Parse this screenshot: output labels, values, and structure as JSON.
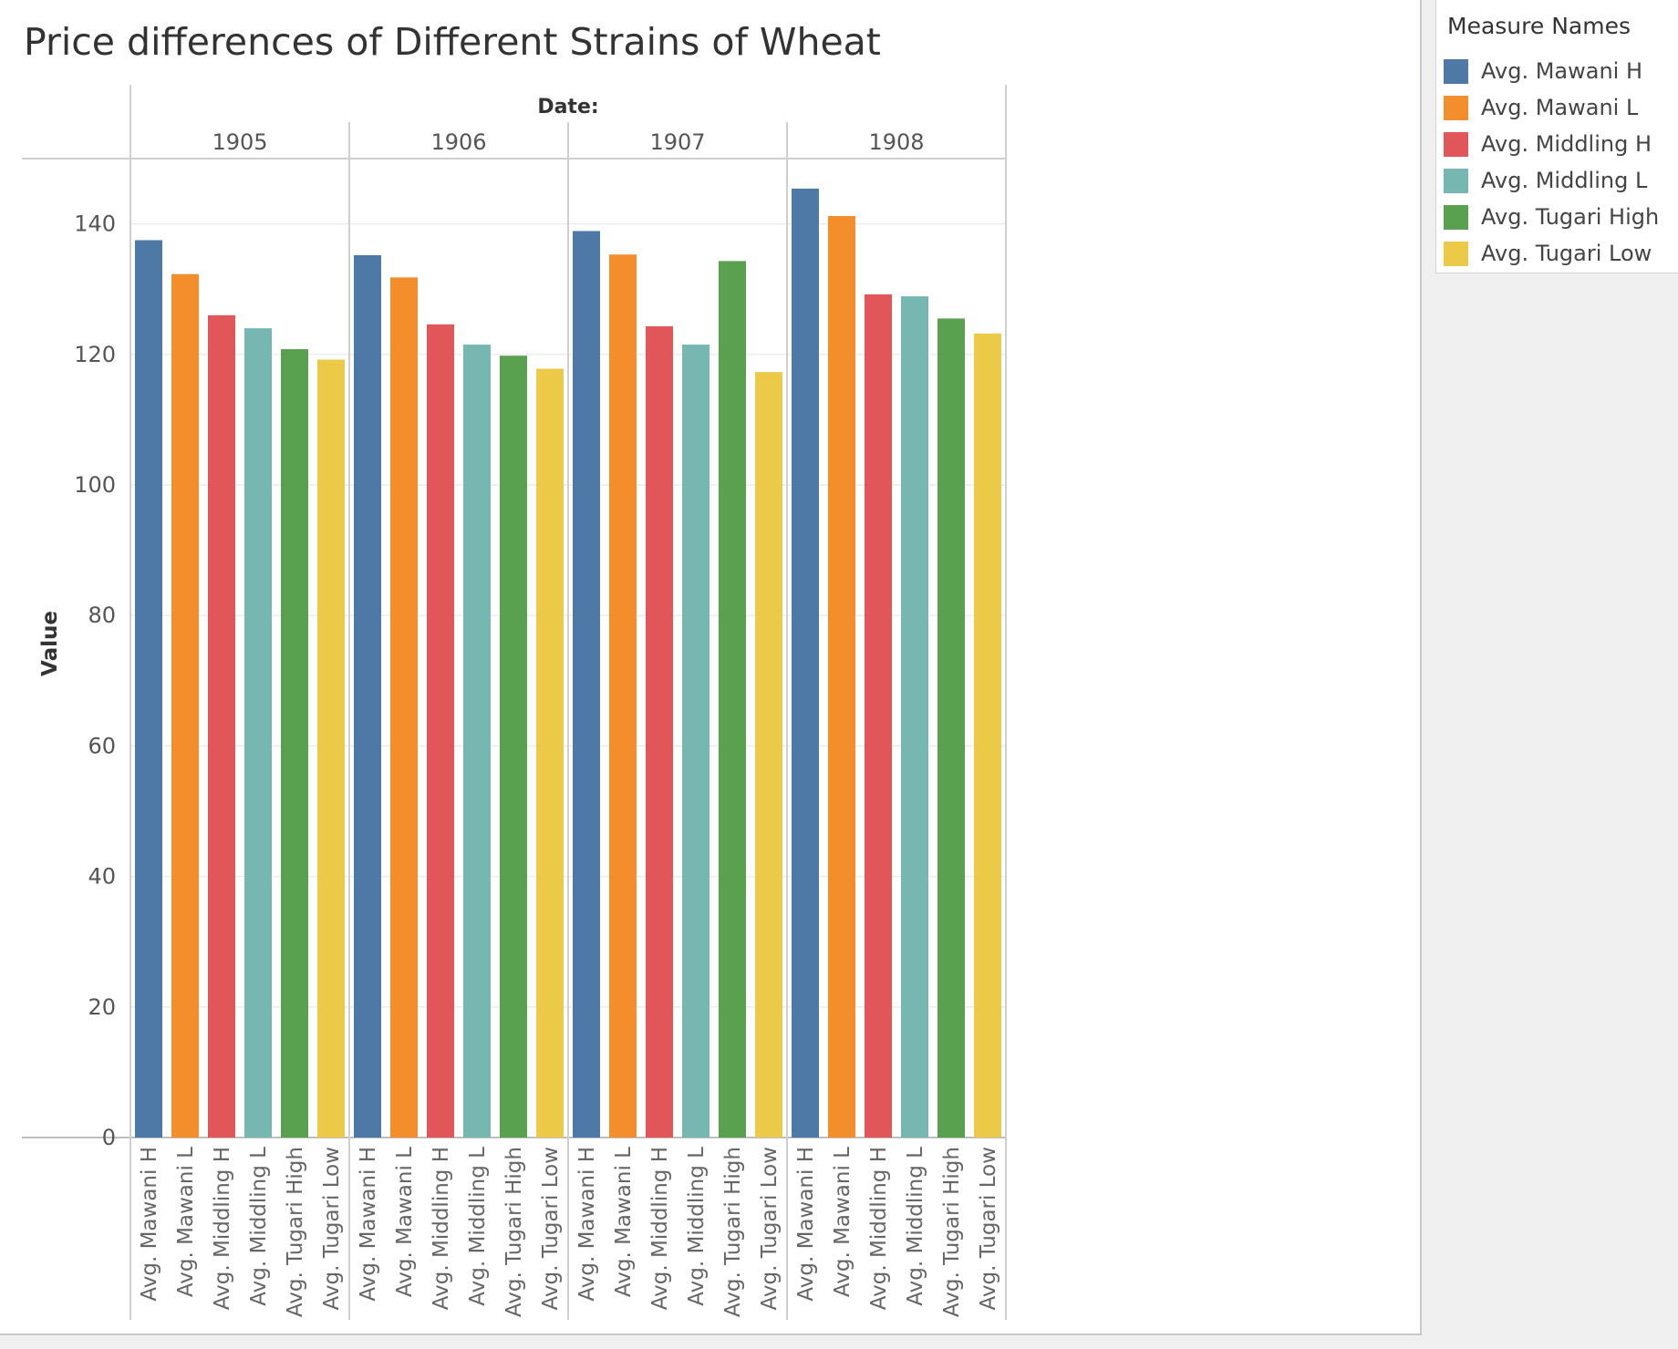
{
  "chart_data": {
    "type": "bar",
    "title": "Price differences of Different Strains of Wheat",
    "column_header": "Date:",
    "ylabel": "Value",
    "ylim": [
      0,
      150
    ],
    "yticks": [
      0,
      20,
      40,
      60,
      80,
      100,
      120,
      140
    ],
    "grid": true,
    "groups": [
      "1905",
      "1906",
      "1907",
      "1908"
    ],
    "categories": [
      "Avg. Mawani H",
      "Avg. Mawani L",
      "Avg. Middling H",
      "Avg. Middling L",
      "Avg. Tugari High",
      "Avg. Tugari Low"
    ],
    "colors": [
      "#4e79a7",
      "#f28e2b",
      "#e15759",
      "#76b7b2",
      "#59a14f",
      "#edc948"
    ],
    "values": [
      [
        137.5,
        132.3,
        126.0,
        124.0,
        120.8,
        119.2
      ],
      [
        135.2,
        131.8,
        124.6,
        121.5,
        119.8,
        117.8
      ],
      [
        138.9,
        135.3,
        124.3,
        121.5,
        134.3,
        117.3
      ],
      [
        145.4,
        141.2,
        129.2,
        128.9,
        125.5,
        123.2
      ]
    ],
    "legend_position": "top-right"
  },
  "legend": {
    "title": "Measure Names",
    "items": [
      {
        "label": "Avg. Mawani H",
        "color": "#4e79a7"
      },
      {
        "label": "Avg. Mawani L",
        "color": "#f28e2b"
      },
      {
        "label": "Avg. Middling H",
        "color": "#e15759"
      },
      {
        "label": "Avg. Middling L",
        "color": "#76b7b2"
      },
      {
        "label": "Avg. Tugari High",
        "color": "#59a14f"
      },
      {
        "label": "Avg. Tugari Low",
        "color": "#edc948"
      }
    ]
  }
}
